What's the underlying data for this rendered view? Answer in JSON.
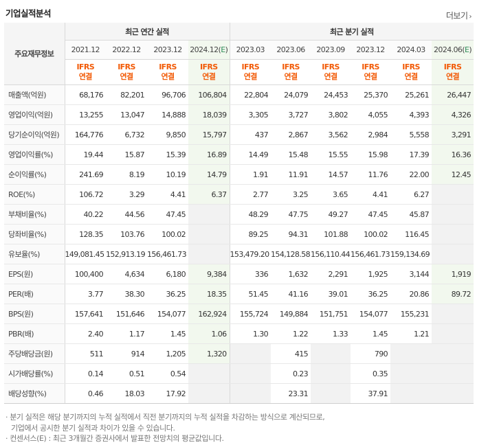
{
  "title": "기업실적분석",
  "more_label": "더보기",
  "corner_label": "주요재무정보",
  "annual_group": "최근 연간 실적",
  "quarter_group": "최근 분기 실적",
  "annual_periods": [
    "2021.12",
    "2022.12",
    "2023.12",
    "2024.12(E)"
  ],
  "quarter_periods": [
    "2023.03",
    "2023.06",
    "2023.09",
    "2023.12",
    "2024.03",
    "2024.06(E)"
  ],
  "ifrs_line1": "IFRS",
  "ifrs_line2": "연결",
  "rows": [
    {
      "label": "매출액(억원)",
      "values": [
        "68,176",
        "82,201",
        "96,706",
        "106,804",
        "22,804",
        "24,079",
        "24,453",
        "25,370",
        "25,261",
        "26,447"
      ]
    },
    {
      "label": "영업이익(억원)",
      "values": [
        "13,255",
        "13,047",
        "14,888",
        "18,039",
        "3,305",
        "3,727",
        "3,802",
        "4,055",
        "4,393",
        "4,326"
      ]
    },
    {
      "label": "당기순이익(억원)",
      "values": [
        "164,776",
        "6,732",
        "9,850",
        "15,797",
        "437",
        "2,867",
        "3,562",
        "2,984",
        "5,558",
        "3,291"
      ]
    },
    {
      "label": "영업이익률(%)",
      "values": [
        "19.44",
        "15.87",
        "15.39",
        "16.89",
        "14.49",
        "15.48",
        "15.55",
        "15.98",
        "17.39",
        "16.36"
      ]
    },
    {
      "label": "순이익률(%)",
      "values": [
        "241.69",
        "8.19",
        "10.19",
        "14.79",
        "1.91",
        "11.91",
        "14.57",
        "11.76",
        "22.00",
        "12.45"
      ]
    },
    {
      "label": "ROE(%)",
      "values": [
        "106.72",
        "3.29",
        "4.41",
        "6.37",
        "2.77",
        "3.25",
        "3.65",
        "4.41",
        "6.27",
        ""
      ]
    },
    {
      "label": "부채비율(%)",
      "values": [
        "40.22",
        "44.56",
        "47.45",
        "",
        "48.29",
        "47.75",
        "49.27",
        "47.45",
        "45.87",
        ""
      ]
    },
    {
      "label": "당좌비율(%)",
      "values": [
        "128.35",
        "103.76",
        "100.02",
        "",
        "89.25",
        "94.31",
        "101.88",
        "100.02",
        "116.45",
        ""
      ]
    },
    {
      "label": "유보율(%)",
      "values": [
        "149,081.45",
        "152,913.19",
        "156,461.73",
        "",
        "153,479.20",
        "154,128.58",
        "156,110.44",
        "156,461.73",
        "159,134.69",
        ""
      ]
    },
    {
      "label": "EPS(원)",
      "values": [
        "100,400",
        "4,634",
        "6,180",
        "9,384",
        "336",
        "1,632",
        "2,291",
        "1,925",
        "3,144",
        "1,919"
      ]
    },
    {
      "label": "PER(배)",
      "values": [
        "3.77",
        "38.30",
        "36.25",
        "18.35",
        "51.45",
        "41.16",
        "39.01",
        "36.25",
        "20.86",
        "89.72"
      ]
    },
    {
      "label": "BPS(원)",
      "values": [
        "157,641",
        "151,646",
        "154,077",
        "162,924",
        "155,724",
        "149,884",
        "151,751",
        "154,077",
        "155,231",
        ""
      ]
    },
    {
      "label": "PBR(배)",
      "values": [
        "2.40",
        "1.17",
        "1.45",
        "1.06",
        "1.30",
        "1.22",
        "1.33",
        "1.45",
        "1.21",
        ""
      ]
    },
    {
      "label": "주당배당금(원)",
      "values": [
        "511",
        "914",
        "1,205",
        "1,320",
        "",
        "415",
        "",
        "790",
        "",
        ""
      ]
    },
    {
      "label": "시가배당률(%)",
      "values": [
        "0.14",
        "0.51",
        "0.54",
        "",
        "",
        "0.23",
        "",
        "0.35",
        "",
        ""
      ]
    },
    {
      "label": "배당성향(%)",
      "values": [
        "0.46",
        "18.03",
        "17.92",
        "",
        "",
        "23.31",
        "",
        "37.91",
        "",
        ""
      ]
    }
  ],
  "notes": [
    "· 분기 실적은 해당 분기까지의 누적 실적에서 직전 분기까지의 누적 실적을 차감하는 방식으로 계산되므로,",
    "  기업에서 공시한 분기 실적과 차이가 있을 수 있습니다.",
    "· 컨센서스(E) : 최근 3개월간 증권사에서 발표한 전망치의 평균값입니다."
  ]
}
